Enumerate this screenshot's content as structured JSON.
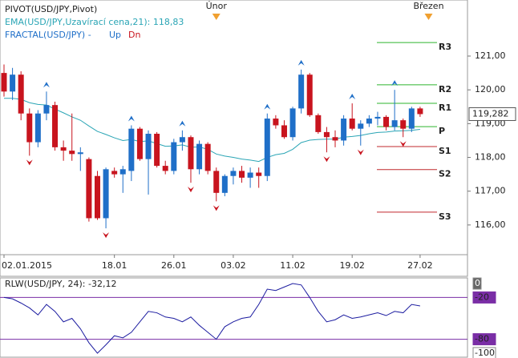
{
  "chart_data": [
    {
      "type": "candlestick",
      "title": "PIVOT(USD/JPY,Pivot)",
      "categories": [
        "02.01.2015",
        null,
        null,
        null,
        null,
        null,
        null,
        null,
        null,
        null,
        null,
        null,
        null,
        "18.01",
        null,
        null,
        null,
        null,
        null,
        null,
        "26.01",
        null,
        null,
        null,
        null,
        null,
        null,
        "03.02",
        null,
        null,
        null,
        null,
        null,
        null,
        "11.02",
        null,
        null,
        null,
        null,
        null,
        null,
        "19.02",
        null,
        null,
        null,
        null,
        null,
        null,
        null,
        "27.02"
      ],
      "open": [
        120.5,
        119.95,
        120.45,
        119.3,
        118.45,
        119.3,
        119.55,
        118.3,
        118.2,
        118.1,
        117.95,
        117.45,
        116.2,
        117.6,
        117.5,
        117.6,
        118.85,
        117.95,
        118.7,
        117.75,
        117.6,
        118.45,
        118.6,
        117.65,
        118.4,
        117.6,
        116.95,
        117.45,
        117.6,
        117.4,
        117.55,
        117.45,
        119.15,
        118.95,
        118.6,
        119.45,
        120.45,
        119.25,
        118.75,
        118.6,
        118.5,
        119.15,
        118.85,
        119.0,
        119.15,
        119.2,
        118.9,
        119.1,
        118.85,
        119.45
      ],
      "high": [
        120.75,
        120.65,
        120.55,
        119.45,
        119.4,
        119.95,
        119.65,
        118.5,
        119.3,
        118.3,
        118.0,
        117.6,
        117.7,
        117.7,
        117.75,
        118.95,
        118.9,
        118.8,
        118.75,
        117.9,
        118.55,
        118.8,
        118.65,
        118.5,
        118.45,
        117.7,
        117.5,
        117.7,
        117.75,
        117.7,
        117.7,
        119.3,
        119.25,
        119.1,
        119.5,
        120.6,
        120.5,
        119.3,
        118.9,
        118.8,
        119.25,
        119.6,
        119.1,
        119.25,
        119.35,
        119.25,
        120.0,
        119.15,
        119.5,
        119.5
      ],
      "low": [
        119.8,
        119.7,
        119.1,
        118.05,
        118.3,
        119.1,
        118.2,
        117.9,
        117.9,
        117.6,
        116.1,
        116.15,
        115.9,
        117.4,
        116.95,
        117.3,
        117.9,
        116.9,
        117.7,
        117.5,
        117.5,
        118.2,
        117.25,
        117.5,
        117.5,
        116.7,
        116.85,
        117.2,
        117.25,
        117.1,
        117.1,
        117.3,
        118.85,
        118.55,
        118.5,
        119.3,
        119.2,
        118.7,
        118.15,
        118.3,
        118.35,
        118.8,
        118.35,
        118.9,
        118.95,
        118.8,
        118.8,
        118.6,
        118.75,
        119.2
      ],
      "close": [
        119.95,
        120.45,
        119.3,
        118.45,
        119.3,
        119.55,
        118.3,
        118.2,
        118.1,
        118.15,
        116.2,
        116.2,
        117.65,
        117.5,
        117.65,
        118.85,
        117.95,
        118.7,
        117.75,
        117.6,
        118.45,
        118.6,
        117.65,
        118.4,
        117.6,
        116.95,
        117.45,
        117.6,
        117.4,
        117.55,
        117.45,
        119.15,
        118.95,
        118.6,
        119.45,
        120.45,
        119.25,
        118.75,
        118.6,
        118.5,
        119.15,
        118.85,
        119.0,
        119.15,
        119.2,
        118.9,
        119.1,
        118.85,
        119.45,
        119.282
      ],
      "up_color": "#1f6fc8",
      "down_color": "#c8141e",
      "ema": {
        "name": "EMA(USD/JPY,Uzavírací cena,21): 118,83",
        "color": "#2aa5b5",
        "values": [
          119.75,
          119.75,
          119.72,
          119.62,
          119.57,
          119.55,
          119.43,
          119.32,
          119.2,
          119.1,
          118.93,
          118.77,
          118.68,
          118.58,
          118.5,
          118.53,
          118.47,
          118.49,
          118.41,
          118.33,
          118.34,
          118.37,
          118.3,
          118.31,
          118.24,
          118.1,
          118.04,
          118.0,
          117.95,
          117.92,
          117.88,
          118.0,
          118.08,
          118.12,
          118.24,
          118.44,
          118.51,
          118.53,
          118.54,
          118.54,
          118.6,
          118.62,
          118.65,
          118.7,
          118.74,
          118.75,
          118.78,
          118.79,
          118.8,
          118.83
        ]
      },
      "fractals": {
        "name": "FRACTAL(USD/JPY) -",
        "up": {
          "name": "Up",
          "color": "#1f6fc8",
          "points": [
            {
              "x": 5,
              "value": 119.95
            },
            {
              "x": 15,
              "value": 118.95
            },
            {
              "x": 21,
              "value": 118.8
            },
            {
              "x": 31,
              "value": 119.3
            },
            {
              "x": 35,
              "value": 120.6
            },
            {
              "x": 41,
              "value": 119.6
            },
            {
              "x": 46,
              "value": 120.0
            }
          ]
        },
        "down": {
          "name": "Dn",
          "color": "#c8141e",
          "points": [
            {
              "x": 3,
              "value": 118.05
            },
            {
              "x": 12,
              "value": 115.9
            },
            {
              "x": 22,
              "value": 117.25
            },
            {
              "x": 25,
              "value": 116.7
            },
            {
              "x": 38,
              "value": 118.15
            },
            {
              "x": 42,
              "value": 118.35
            },
            {
              "x": 47,
              "value": 118.6
            }
          ]
        }
      },
      "pivots": [
        {
          "name": "R3",
          "value": 121.4,
          "color": "#2db52d"
        },
        {
          "name": "R2",
          "value": 120.15,
          "color": "#2db52d"
        },
        {
          "name": "R1",
          "value": 119.6,
          "color": "#2db52d"
        },
        {
          "name": "P",
          "value": 118.91,
          "color": "#2db52d"
        },
        {
          "name": "S1",
          "value": 118.32,
          "color": "#c0282d"
        },
        {
          "name": "S2",
          "value": 117.64,
          "color": "#c0282d"
        },
        {
          "name": "S3",
          "value": 116.38,
          "color": "#c0282d"
        }
      ],
      "month_markers": [
        {
          "label": "Únor",
          "x": 25
        },
        {
          "label": "Březen",
          "x": 50
        }
      ],
      "last_price": {
        "value": 119.282,
        "label": "119,282"
      },
      "ylim": [
        115.12,
        122.66
      ],
      "yticks": [
        {
          "value": 116,
          "label": "116,00"
        },
        {
          "value": 117,
          "label": "117,00"
        },
        {
          "value": 118,
          "label": "118,00"
        },
        {
          "value": 119,
          "label": "119,00"
        },
        {
          "value": 120,
          "label": "120,00"
        },
        {
          "value": 121,
          "label": "121,00"
        }
      ]
    },
    {
      "type": "line",
      "title": "RLW(USD/JPY, 24): -32,12",
      "color": "#1c1ca0",
      "values": [
        -20,
        -22,
        -28,
        -35,
        -45,
        -30,
        -40,
        -55,
        -50,
        -65,
        -85,
        -100,
        -88,
        -75,
        -78,
        -70,
        -55,
        -40,
        -42,
        -48,
        -50,
        -55,
        -48,
        -60,
        -70,
        -80,
        -62,
        -55,
        -50,
        -48,
        -30,
        -8,
        -10,
        -5,
        0,
        -2,
        -20,
        -40,
        -55,
        -52,
        -45,
        -50,
        -48,
        -45,
        -42,
        -46,
        -40,
        -42,
        -30,
        -32.12
      ],
      "levels": [
        -20,
        -80
      ],
      "level_color": "#7a2ea6",
      "ylim": [
        -105.8,
        8.1
      ],
      "yticks": [
        0,
        -20,
        -80,
        -100
      ]
    }
  ]
}
